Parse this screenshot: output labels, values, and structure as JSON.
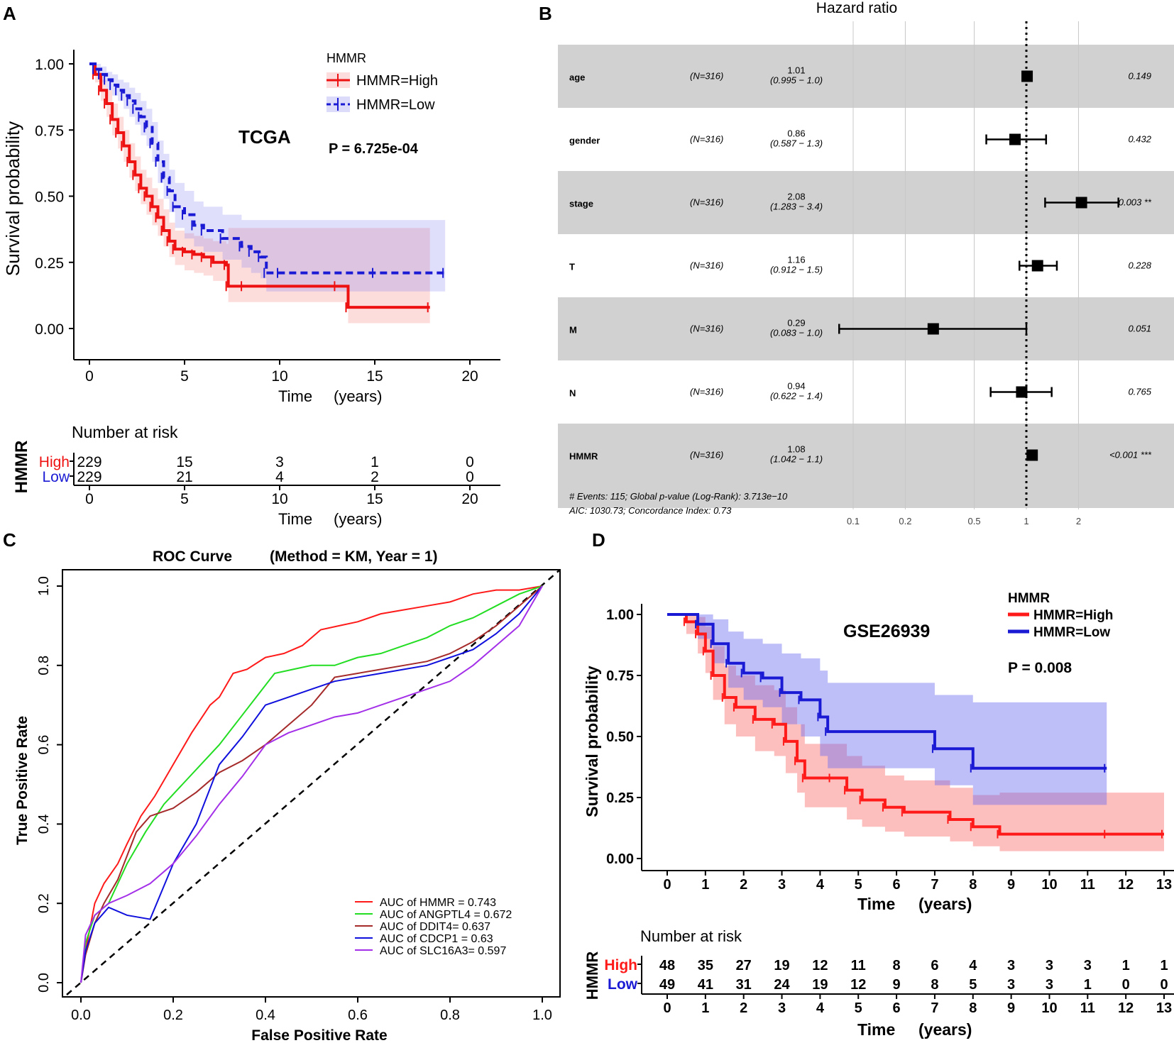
{
  "figure": {
    "panels": {
      "A": {
        "label": "A",
        "title": "TCGA",
        "pvalue": "P = 6.725e-04",
        "ylabel": "Survival probability",
        "xlabel_time": "Time",
        "xlabel_unit": "(years)",
        "risk_title": "Number at risk",
        "risk_strata_label": "HMMR",
        "risk_rows": [
          {
            "name": "High",
            "values": [
              "229",
              "15",
              "3",
              "1",
              "0"
            ]
          },
          {
            "name": "Low",
            "values": [
              "229",
              "21",
              "4",
              "2",
              "0"
            ]
          }
        ],
        "legend_title": "HMMR",
        "legend": [
          "HMMR=High",
          "HMMR=Low"
        ]
      },
      "B": {
        "label": "B",
        "title": "Hazard ratio",
        "footer1": "# Events: 115; Global p-value (Log-Rank): 3.713e−10",
        "footer2": "AIC: 1030.73; Concordance Index: 0.73"
      },
      "C": {
        "label": "C",
        "title_part1": "ROC  Curve",
        "title_part2": "(Method = KM, Year = 1)",
        "xlabel": "False  Positive  Rate",
        "ylabel": "True  Positive  Rate"
      },
      "D": {
        "label": "D",
        "title": "GSE26939",
        "pvalue": "P = 0.008",
        "ylabel": "Survival probability",
        "xlabel_time": "Time",
        "xlabel_unit": "(years)",
        "risk_title": "Number at risk",
        "risk_strata_label": "HMMR",
        "risk_rows": [
          {
            "name": "High",
            "values": [
              "48",
              "35",
              "27",
              "19",
              "12",
              "11",
              "8",
              "6",
              "4",
              "3",
              "3",
              "3",
              "1",
              "1"
            ]
          },
          {
            "name": "Low",
            "values": [
              "49",
              "41",
              "31",
              "24",
              "19",
              "12",
              "9",
              "8",
              "5",
              "3",
              "3",
              "1",
              "0",
              "0"
            ]
          }
        ],
        "legend_title": "HMMR",
        "legend": [
          "HMMR=High",
          "HMMR=Low"
        ]
      }
    }
  },
  "chart_data": [
    {
      "type": "line",
      "panel": "A",
      "title": "TCGA",
      "xlabel": "Time (years)",
      "ylabel": "Survival probability",
      "xlim": [
        0,
        20
      ],
      "ylim": [
        0,
        1
      ],
      "xticks": [
        0,
        5,
        10,
        15,
        20
      ],
      "yticks": [
        "0.00",
        "0.25",
        "0.50",
        "0.75",
        "1.00"
      ],
      "series": [
        {
          "name": "HMMR=High",
          "color": "#ee1111",
          "style": "solid",
          "x": [
            0,
            0.3,
            0.6,
            0.9,
            1.2,
            1.5,
            1.8,
            2.1,
            2.4,
            2.7,
            3.0,
            3.3,
            3.6,
            3.9,
            4.2,
            4.5,
            5.0,
            5.5,
            6.0,
            6.5,
            7.2,
            7.3,
            8.1,
            13.0,
            13.6,
            17.9
          ],
          "y": [
            1.0,
            0.96,
            0.9,
            0.85,
            0.79,
            0.74,
            0.69,
            0.63,
            0.58,
            0.53,
            0.5,
            0.46,
            0.42,
            0.37,
            0.33,
            0.3,
            0.29,
            0.28,
            0.27,
            0.25,
            0.24,
            0.16,
            0.16,
            0.16,
            0.08,
            0.08
          ],
          "ci_lower": [
            1.0,
            0.93,
            0.86,
            0.8,
            0.73,
            0.68,
            0.63,
            0.57,
            0.52,
            0.47,
            0.43,
            0.39,
            0.35,
            0.31,
            0.27,
            0.24,
            0.22,
            0.21,
            0.2,
            0.18,
            0.17,
            0.1,
            0.1,
            0.1,
            0.02,
            0.02
          ],
          "ci_upper": [
            1.0,
            0.98,
            0.94,
            0.9,
            0.85,
            0.8,
            0.75,
            0.7,
            0.65,
            0.6,
            0.57,
            0.53,
            0.49,
            0.45,
            0.4,
            0.37,
            0.36,
            0.35,
            0.34,
            0.33,
            0.32,
            0.38,
            0.38,
            0.38,
            0.38,
            0.38
          ]
        },
        {
          "name": "HMMR=Low",
          "color": "#1a1ad4",
          "style": "dashed",
          "x": [
            0,
            0.3,
            0.6,
            0.9,
            1.2,
            1.5,
            1.8,
            2.1,
            2.4,
            2.7,
            3.0,
            3.3,
            3.6,
            3.9,
            4.2,
            4.5,
            5.0,
            5.5,
            6.0,
            7.0,
            8.0,
            8.5,
            9.0,
            9.3,
            10.0,
            15.0,
            18.7
          ],
          "y": [
            1.0,
            0.98,
            0.96,
            0.94,
            0.92,
            0.9,
            0.88,
            0.86,
            0.83,
            0.8,
            0.76,
            0.7,
            0.63,
            0.57,
            0.52,
            0.46,
            0.43,
            0.39,
            0.37,
            0.34,
            0.31,
            0.29,
            0.27,
            0.21,
            0.21,
            0.21,
            0.21
          ],
          "ci_lower": [
            1.0,
            0.96,
            0.93,
            0.9,
            0.88,
            0.86,
            0.83,
            0.8,
            0.77,
            0.73,
            0.69,
            0.63,
            0.55,
            0.49,
            0.44,
            0.38,
            0.34,
            0.31,
            0.29,
            0.26,
            0.23,
            0.21,
            0.19,
            0.14,
            0.14,
            0.14,
            0.14
          ],
          "ci_upper": [
            1.0,
            1.0,
            0.99,
            0.97,
            0.96,
            0.94,
            0.93,
            0.91,
            0.89,
            0.86,
            0.83,
            0.78,
            0.71,
            0.66,
            0.6,
            0.55,
            0.52,
            0.48,
            0.46,
            0.43,
            0.41,
            0.41,
            0.41,
            0.41,
            0.41,
            0.41,
            0.41
          ]
        }
      ],
      "risk_times": [
        0,
        5,
        10,
        15,
        20
      ]
    },
    {
      "type": "forest",
      "panel": "B",
      "title": "Hazard ratio",
      "xscale": "log",
      "xticks": [
        "0.1",
        "0.2",
        "0.5",
        "1",
        "2"
      ],
      "rows": [
        {
          "var": "age",
          "n": "(N=316)",
          "hr": "1.01",
          "ci": "(0.995 − 1.0)",
          "hr_value": 1.01,
          "lo": 0.995,
          "hi": 1.02,
          "p": "0.149",
          "shaded": true
        },
        {
          "var": "gender",
          "n": "(N=316)",
          "hr": "0.86",
          "ci": "(0.587 − 1.3)",
          "hr_value": 0.86,
          "lo": 0.587,
          "hi": 1.3,
          "p": "0.432",
          "shaded": false
        },
        {
          "var": "stage",
          "n": "(N=316)",
          "hr": "2.08",
          "ci": "(1.283 − 3.4)",
          "hr_value": 2.08,
          "lo": 1.283,
          "hi": 3.4,
          "p": "0.003 **",
          "shaded": true
        },
        {
          "var": "T",
          "n": "(N=316)",
          "hr": "1.16",
          "ci": "(0.912 − 1.5)",
          "hr_value": 1.16,
          "lo": 0.912,
          "hi": 1.5,
          "p": "0.228",
          "shaded": false
        },
        {
          "var": "M",
          "n": "(N=316)",
          "hr": "0.29",
          "ci": "(0.083 − 1.0)",
          "hr_value": 0.29,
          "lo": 0.083,
          "hi": 1.0,
          "p": "0.051",
          "shaded": true
        },
        {
          "var": "N",
          "n": "(N=316)",
          "hr": "0.94",
          "ci": "(0.622 − 1.4)",
          "hr_value": 0.94,
          "lo": 0.622,
          "hi": 1.4,
          "p": "0.765",
          "shaded": false
        },
        {
          "var": "HMMR",
          "n": "(N=316)",
          "hr": "1.08",
          "ci": "(1.042 − 1.1)",
          "hr_value": 1.08,
          "lo": 1.042,
          "hi": 1.1,
          "p": "<0.001 ***",
          "shaded": true
        }
      ]
    },
    {
      "type": "line",
      "panel": "C",
      "title": "ROC  Curve    (Method = KM, Year = 1)",
      "xlabel": "False  Positive  Rate",
      "ylabel": "True  Positive  Rate",
      "xlim": [
        0,
        1
      ],
      "ylim": [
        0,
        1
      ],
      "xticks": [
        "0.0",
        "0.2",
        "0.4",
        "0.6",
        "0.8",
        "1.0"
      ],
      "yticks": [
        "0.0",
        "0.2",
        "0.4",
        "0.6",
        "0.8",
        "1.0"
      ],
      "series": [
        {
          "name": "AUC of HMMR =  0.743",
          "color": "#ff1a1a",
          "x": [
            0,
            0.01,
            0.03,
            0.05,
            0.08,
            0.1,
            0.13,
            0.16,
            0.2,
            0.24,
            0.28,
            0.3,
            0.33,
            0.36,
            0.4,
            0.44,
            0.48,
            0.52,
            0.56,
            0.6,
            0.65,
            0.7,
            0.75,
            0.8,
            0.85,
            0.9,
            0.95,
            1.0
          ],
          "y": [
            0,
            0.08,
            0.2,
            0.25,
            0.3,
            0.35,
            0.42,
            0.47,
            0.55,
            0.63,
            0.7,
            0.72,
            0.78,
            0.79,
            0.82,
            0.83,
            0.85,
            0.89,
            0.9,
            0.91,
            0.93,
            0.94,
            0.95,
            0.96,
            0.98,
            0.99,
            0.99,
            1.0
          ]
        },
        {
          "name": "AUC of ANGPTL4 = 0.672",
          "color": "#22dd22",
          "x": [
            0,
            0.01,
            0.03,
            0.06,
            0.1,
            0.14,
            0.18,
            0.22,
            0.26,
            0.3,
            0.34,
            0.38,
            0.42,
            0.46,
            0.5,
            0.55,
            0.6,
            0.65,
            0.7,
            0.75,
            0.8,
            0.85,
            0.9,
            0.95,
            1.0
          ],
          "y": [
            0,
            0.1,
            0.17,
            0.2,
            0.3,
            0.38,
            0.45,
            0.5,
            0.55,
            0.6,
            0.66,
            0.72,
            0.78,
            0.79,
            0.8,
            0.8,
            0.82,
            0.83,
            0.85,
            0.87,
            0.9,
            0.92,
            0.95,
            0.98,
            1.0
          ]
        },
        {
          "name": "AUC of DDIT4= 0.637",
          "color": "#a52a2a",
          "x": [
            0,
            0.01,
            0.03,
            0.05,
            0.08,
            0.1,
            0.12,
            0.15,
            0.2,
            0.25,
            0.3,
            0.35,
            0.4,
            0.45,
            0.5,
            0.55,
            0.6,
            0.65,
            0.7,
            0.75,
            0.8,
            0.85,
            0.9,
            0.95,
            1.0
          ],
          "y": [
            0,
            0.07,
            0.15,
            0.2,
            0.26,
            0.32,
            0.38,
            0.42,
            0.44,
            0.48,
            0.53,
            0.56,
            0.6,
            0.65,
            0.7,
            0.77,
            0.78,
            0.79,
            0.8,
            0.81,
            0.83,
            0.86,
            0.9,
            0.95,
            1.0
          ]
        },
        {
          "name": "AUC of CDCP1 = 0.63",
          "color": "#1010dd",
          "x": [
            0,
            0.01,
            0.03,
            0.06,
            0.1,
            0.15,
            0.2,
            0.25,
            0.3,
            0.35,
            0.4,
            0.45,
            0.5,
            0.55,
            0.6,
            0.65,
            0.7,
            0.75,
            0.8,
            0.85,
            0.9,
            0.95,
            1.0
          ],
          "y": [
            0,
            0.08,
            0.15,
            0.19,
            0.17,
            0.16,
            0.3,
            0.4,
            0.55,
            0.62,
            0.7,
            0.72,
            0.74,
            0.76,
            0.77,
            0.78,
            0.79,
            0.8,
            0.82,
            0.84,
            0.88,
            0.93,
            1.0
          ]
        },
        {
          "name": "AUC of SLC16A3= 0.597",
          "color": "#a330e8",
          "x": [
            0,
            0.01,
            0.03,
            0.06,
            0.1,
            0.15,
            0.2,
            0.25,
            0.3,
            0.35,
            0.4,
            0.45,
            0.5,
            0.55,
            0.6,
            0.65,
            0.7,
            0.75,
            0.8,
            0.85,
            0.9,
            0.95,
            1.0
          ],
          "y": [
            0,
            0.12,
            0.17,
            0.2,
            0.22,
            0.25,
            0.3,
            0.37,
            0.45,
            0.52,
            0.6,
            0.63,
            0.65,
            0.67,
            0.68,
            0.7,
            0.72,
            0.74,
            0.76,
            0.8,
            0.85,
            0.9,
            1.0
          ]
        }
      ]
    },
    {
      "type": "line",
      "panel": "D",
      "title": "GSE26939",
      "xlabel": "Time (years)",
      "ylabel": "Survival probability",
      "xlim": [
        0,
        13
      ],
      "ylim": [
        0,
        1
      ],
      "xticks": [
        0,
        1,
        2,
        3,
        4,
        5,
        6,
        7,
        8,
        9,
        10,
        11,
        12,
        13
      ],
      "yticks": [
        "0.00",
        "0.25",
        "0.50",
        "0.75",
        "1.00"
      ],
      "series": [
        {
          "name": "HMMR=High",
          "color": "#ff1a1a",
          "style": "solid",
          "x": [
            0,
            0.5,
            0.8,
            1.0,
            1.2,
            1.5,
            1.8,
            2.3,
            2.8,
            3.1,
            3.4,
            3.6,
            4.3,
            4.7,
            5.1,
            5.7,
            6.2,
            7.4,
            8.0,
            8.7,
            11.5,
            13.0
          ],
          "y": [
            1.0,
            0.97,
            0.92,
            0.85,
            0.75,
            0.66,
            0.62,
            0.57,
            0.55,
            0.48,
            0.4,
            0.33,
            0.33,
            0.28,
            0.24,
            0.21,
            0.19,
            0.16,
            0.13,
            0.1,
            0.1,
            0.1
          ],
          "ci_lower": [
            1.0,
            0.92,
            0.84,
            0.76,
            0.65,
            0.55,
            0.5,
            0.44,
            0.42,
            0.35,
            0.27,
            0.21,
            0.21,
            0.16,
            0.13,
            0.11,
            0.09,
            0.07,
            0.05,
            0.03,
            0.03,
            0.03
          ],
          "ci_upper": [
            1.0,
            1.0,
            0.99,
            0.95,
            0.87,
            0.79,
            0.75,
            0.71,
            0.69,
            0.62,
            0.55,
            0.47,
            0.47,
            0.42,
            0.38,
            0.34,
            0.32,
            0.29,
            0.26,
            0.27,
            0.27,
            0.27
          ]
        },
        {
          "name": "HMMR=Low",
          "color": "#1a1ad4",
          "style": "solid",
          "x": [
            0,
            0.8,
            1.2,
            1.6,
            2.0,
            2.5,
            3.0,
            3.5,
            4.0,
            4.2,
            7.0,
            8.0,
            11.5
          ],
          "y": [
            1.0,
            0.96,
            0.88,
            0.8,
            0.76,
            0.74,
            0.68,
            0.65,
            0.58,
            0.52,
            0.45,
            0.37,
            0.37
          ],
          "ci_lower": [
            1.0,
            0.9,
            0.8,
            0.7,
            0.65,
            0.62,
            0.55,
            0.5,
            0.42,
            0.37,
            0.3,
            0.22,
            0.22
          ],
          "ci_upper": [
            1.0,
            1.0,
            0.98,
            0.93,
            0.9,
            0.88,
            0.84,
            0.82,
            0.77,
            0.72,
            0.67,
            0.64,
            0.64
          ]
        }
      ],
      "risk_times": [
        0,
        1,
        2,
        3,
        4,
        5,
        6,
        7,
        8,
        9,
        10,
        11,
        12,
        13
      ]
    }
  ]
}
